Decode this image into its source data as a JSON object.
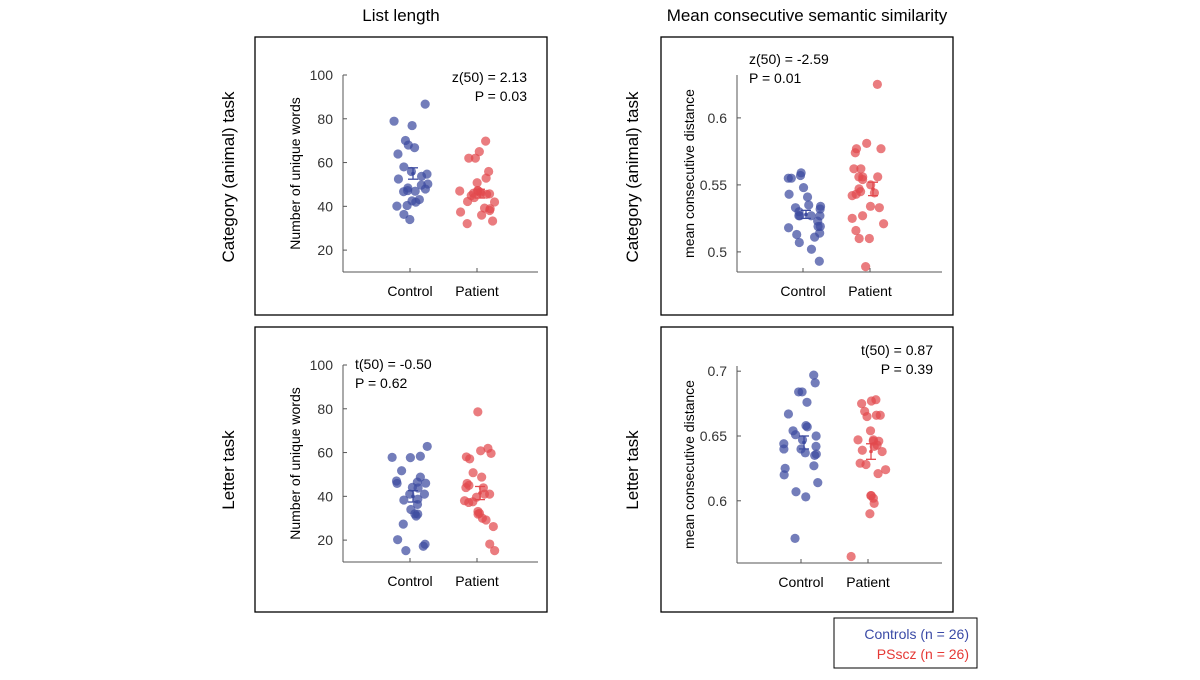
{
  "column_titles": [
    "List length",
    "Mean consecutive semantic similarity"
  ],
  "row_labels": [
    "Category (animal) task",
    "Letter task"
  ],
  "legend": {
    "controls": "Controls (n = 26)",
    "pscz": "PSscz (n = 26)",
    "controls_color": "#3a4aa6",
    "pscz_color": "#e53935"
  },
  "colors": {
    "control": "#3d4ba0",
    "patient": "#e2494d"
  },
  "chart_data": [
    {
      "type": "scatter",
      "row": "Category (animal) task",
      "column": "List length",
      "ylabel": "Number of unique words",
      "ylim": [
        10,
        100
      ],
      "yticks": [
        20,
        40,
        60,
        80,
        100
      ],
      "categories": [
        "Control",
        "Patient"
      ],
      "annotation": [
        "z(50) = 2.13",
        "P = 0.03"
      ],
      "annotation_align": "top-right",
      "series": [
        {
          "values": [
            86.7,
            78.9,
            76.9,
            70.1,
            68,
            66.8,
            63.9,
            58,
            55.9,
            54.7,
            53.7,
            52.5,
            50.2,
            49.7,
            48.4,
            47.9,
            47.2,
            46.9,
            46.7,
            43.1,
            42.5,
            41.9,
            40.4,
            40.1,
            36.3,
            34
          ],
          "mean": 55,
          "sem": 2.6
        },
        {
          "values": [
            69.8,
            65,
            62,
            62,
            55.9,
            52.9,
            50.8,
            47.2,
            47.2,
            47,
            46.4,
            46,
            46,
            45.7,
            44.9,
            44,
            42.2,
            42,
            39.2,
            38.9,
            38.1,
            37.4,
            36,
            33.3,
            32.1,
            45.5
          ],
          "mean": 45.8,
          "sem": 2
        }
      ]
    },
    {
      "type": "scatter",
      "row": "Category (animal) task",
      "column": "Mean consecutive semantic similarity",
      "ylabel": "mean consecutive distance",
      "ylim": [
        0.485,
        0.632
      ],
      "yticks": [
        0.5,
        0.55,
        0.6
      ],
      "categories": [
        "Control",
        "Patient"
      ],
      "annotation": [
        "z(50) = -2.59",
        "P = 0.01"
      ],
      "annotation_align": "top-left",
      "series": [
        {
          "values": [
            0.559,
            0.557,
            0.555,
            0.555,
            0.548,
            0.543,
            0.541,
            0.535,
            0.534,
            0.533,
            0.532,
            0.527,
            0.527,
            0.527,
            0.527,
            0.523,
            0.519,
            0.519,
            0.518,
            0.514,
            0.513,
            0.511,
            0.507,
            0.502,
            0.493,
            0.53
          ],
          "mean": 0.528,
          "sem": 0.003
        },
        {
          "values": [
            0.625,
            0.581,
            0.577,
            0.577,
            0.574,
            0.562,
            0.562,
            0.556,
            0.556,
            0.556,
            0.554,
            0.55,
            0.547,
            0.545,
            0.544,
            0.543,
            0.542,
            0.534,
            0.533,
            0.527,
            0.525,
            0.521,
            0.516,
            0.51,
            0.51,
            0.489
          ],
          "mean": 0.547,
          "sem": 0.005
        }
      ]
    },
    {
      "type": "scatter",
      "row": "Letter task",
      "column": "List length",
      "ylabel": "Number of unique words",
      "ylim": [
        10,
        100
      ],
      "yticks": [
        20,
        40,
        60,
        80,
        100
      ],
      "categories": [
        "Control",
        "Patient"
      ],
      "annotation": [
        "t(50) = -0.50",
        "P = 0.62"
      ],
      "annotation_align": "top-left",
      "series": [
        {
          "values": [
            62.8,
            57.7,
            58.3,
            57.8,
            51.7,
            48.8,
            47,
            46.5,
            46,
            45.9,
            44.1,
            43.8,
            41,
            41,
            38.7,
            38.3,
            36.3,
            34,
            32,
            31.9,
            31,
            27.3,
            20.2,
            18.1,
            17.2,
            15.2
          ],
          "mean": 40,
          "sem": 2.6
        },
        {
          "values": [
            78.6,
            61.9,
            60.8,
            59.6,
            58,
            57.1,
            50.8,
            48.8,
            45.9,
            45,
            44,
            43.9,
            41,
            41,
            39.6,
            38,
            37.5,
            37.2,
            33.1,
            32.2,
            31.9,
            30,
            29.2,
            26.2,
            18.2,
            15.2
          ],
          "mean": 41.5,
          "sem": 3
        }
      ]
    },
    {
      "type": "scatter",
      "row": "Letter task",
      "column": "Mean consecutive semantic similarity",
      "ylabel": "mean consecutive distance",
      "ylim": [
        0.552,
        0.704
      ],
      "yticks": [
        0.6,
        0.65,
        0.7
      ],
      "categories": [
        "Control",
        "Patient"
      ],
      "annotation": [
        "t(50) = 0.87",
        "P = 0.39"
      ],
      "annotation_align": "top-right",
      "series": [
        {
          "values": [
            0.697,
            0.691,
            0.684,
            0.684,
            0.676,
            0.667,
            0.658,
            0.657,
            0.654,
            0.651,
            0.65,
            0.647,
            0.644,
            0.642,
            0.64,
            0.64,
            0.637,
            0.636,
            0.635,
            0.627,
            0.625,
            0.62,
            0.614,
            0.607,
            0.603,
            0.571
          ],
          "mean": 0.645,
          "sem": 0.005
        },
        {
          "values": [
            0.678,
            0.677,
            0.675,
            0.669,
            0.666,
            0.666,
            0.665,
            0.654,
            0.647,
            0.647,
            0.646,
            0.646,
            0.643,
            0.642,
            0.639,
            0.638,
            0.629,
            0.628,
            0.624,
            0.621,
            0.604,
            0.604,
            0.602,
            0.598,
            0.59,
            0.557
          ],
          "mean": 0.638,
          "sem": 0.006
        }
      ]
    }
  ]
}
